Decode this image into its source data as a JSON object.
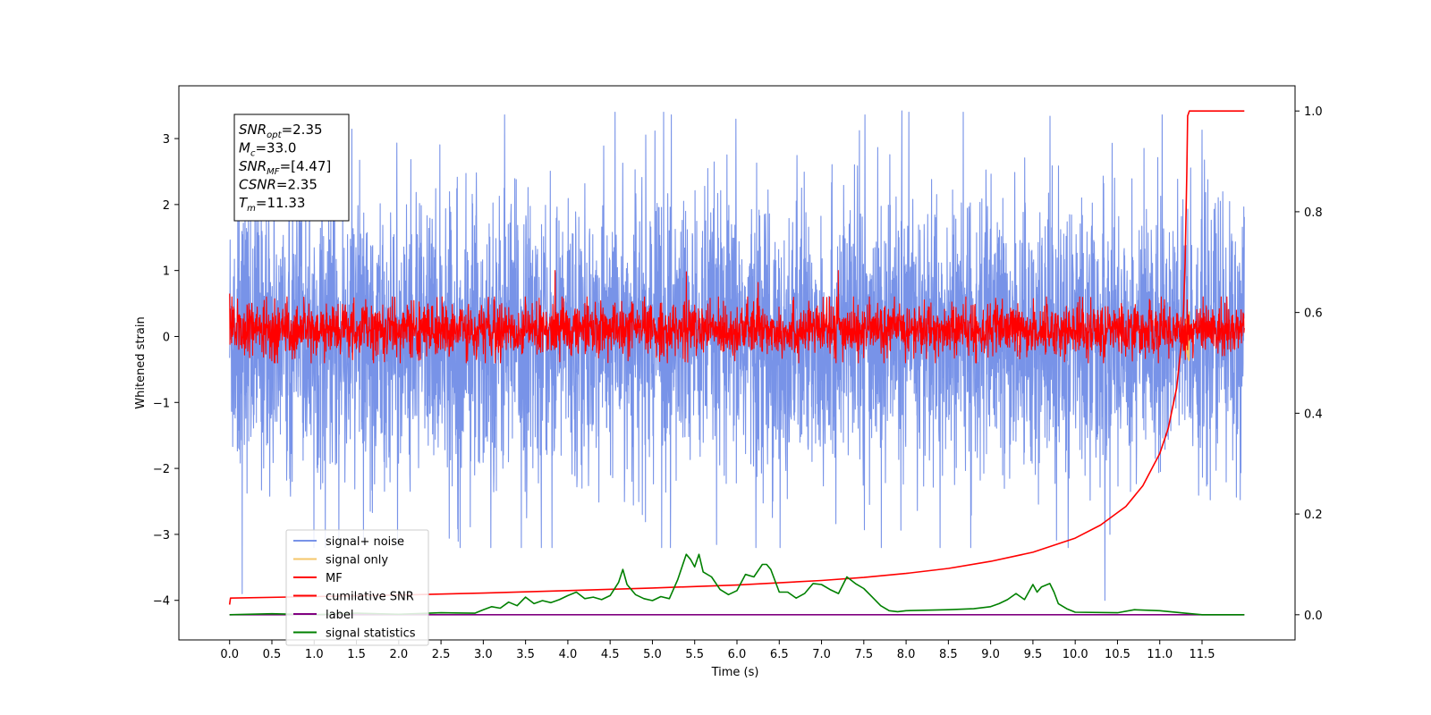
{
  "chart_data": {
    "type": "line",
    "title": "",
    "xlabel": "Time (s)",
    "ylabel": "Whitened strain",
    "y2label": "",
    "xlim": [
      -0.6,
      12.6
    ],
    "ylim": [
      -4.6,
      3.8
    ],
    "y2lim": [
      -0.05,
      1.05
    ],
    "x_ticks": [
      0.0,
      0.5,
      1.0,
      1.5,
      2.0,
      2.5,
      3.0,
      3.5,
      4.0,
      4.5,
      5.0,
      5.5,
      6.0,
      6.5,
      7.0,
      7.5,
      8.0,
      8.5,
      9.0,
      9.5,
      10.0,
      10.5,
      11.0,
      11.5
    ],
    "x_tick_labels": [
      "0.0",
      "0.5",
      "1.0",
      "1.5",
      "2.0",
      "2.5",
      "3.0",
      "3.5",
      "4.0",
      "4.5",
      "5.0",
      "5.5",
      "6.0",
      "6.5",
      "7.0",
      "7.5",
      "8.0",
      "8.5",
      "9.0",
      "9.5",
      "10.0",
      "10.5",
      "11.0",
      "11.5"
    ],
    "y_ticks": [
      -4,
      -3,
      -2,
      -1,
      0,
      1,
      2,
      3
    ],
    "y_tick_labels": [
      "−4",
      "−3",
      "−2",
      "−1",
      "0",
      "1",
      "2",
      "3"
    ],
    "y2_ticks": [
      0.0,
      0.2,
      0.4,
      0.6,
      0.8,
      1.0
    ],
    "y2_tick_labels": [
      "0.0",
      "0.2",
      "0.4",
      "0.6",
      "0.8",
      "1.0"
    ],
    "grid": false,
    "legend_placement": "lower-left",
    "annotation_lines": [
      {
        "pre": "SNR",
        "sub": "opt",
        "post": "=2.35"
      },
      {
        "pre": "M",
        "sub": "c",
        "post": "=33.0"
      },
      {
        "pre": "SNR",
        "sub": "MF",
        "post": "=[4.47]"
      },
      {
        "pre": "CSNR",
        "sub": "",
        "post": "=2.35"
      },
      {
        "pre": "T",
        "sub": "m",
        "post": "=11.33"
      }
    ],
    "series": [
      {
        "name": "signal+ noise",
        "color": "#7893e8",
        "axis": "left",
        "style": "noise",
        "x_range": [
          0.0,
          12.0
        ],
        "amplitude_approx": [
          -3.2,
          3.4
        ],
        "spikes": [
          {
            "x": 0.15,
            "y": -3.9
          },
          {
            "x": 7.95,
            "y": 3.42
          },
          {
            "x": 10.35,
            "y": -4.0
          },
          {
            "x": 3.45,
            "y": -3.2
          }
        ]
      },
      {
        "name": "signal only",
        "color": "#f5c66a",
        "axis": "left",
        "style": "chirp",
        "x_range": [
          11.25,
          11.35
        ],
        "amplitude_approx": [
          -0.4,
          0.4
        ]
      },
      {
        "name": "MF",
        "color": "#ff0000",
        "axis": "left",
        "style": "noise",
        "x_range": [
          0.0,
          12.0
        ],
        "amplitude_approx": [
          -0.4,
          0.6
        ],
        "spikes": [
          {
            "x": 0.0,
            "y": 0.65
          },
          {
            "x": 3.85,
            "y": 1.0
          },
          {
            "x": 5.4,
            "y": 0.98
          },
          {
            "x": 7.2,
            "y": 1.0
          },
          {
            "x": 6.25,
            "y": 0.82
          }
        ]
      },
      {
        "name": "cumilative SNR",
        "color": "#ff0000",
        "axis": "right",
        "x": [
          0.0,
          0.01,
          1.0,
          2.0,
          3.0,
          4.0,
          5.0,
          6.0,
          7.0,
          7.5,
          8.0,
          8.5,
          9.0,
          9.5,
          10.0,
          10.3,
          10.6,
          10.8,
          11.0,
          11.1,
          11.2,
          11.25,
          11.28,
          11.3,
          11.32,
          11.33,
          11.35,
          11.6,
          12.0
        ],
        "y": [
          0.02,
          0.033,
          0.036,
          0.039,
          0.043,
          0.048,
          0.053,
          0.059,
          0.068,
          0.074,
          0.082,
          0.092,
          0.106,
          0.124,
          0.152,
          0.178,
          0.215,
          0.256,
          0.32,
          0.37,
          0.45,
          0.53,
          0.6,
          0.7,
          0.88,
          0.99,
          1.0,
          1.0,
          1.0
        ]
      },
      {
        "name": "label",
        "color": "#800080",
        "axis": "right",
        "x": [
          0.0,
          12.0
        ],
        "y": [
          0.0,
          0.0
        ]
      },
      {
        "name": "signal statistics",
        "color": "#008000",
        "axis": "right",
        "x": [
          0.0,
          0.5,
          1.0,
          1.5,
          2.0,
          2.5,
          2.9,
          3.0,
          3.1,
          3.2,
          3.3,
          3.4,
          3.5,
          3.6,
          3.7,
          3.8,
          3.9,
          4.0,
          4.1,
          4.2,
          4.3,
          4.4,
          4.5,
          4.6,
          4.65,
          4.7,
          4.8,
          4.9,
          5.0,
          5.1,
          5.2,
          5.3,
          5.4,
          5.45,
          5.5,
          5.55,
          5.6,
          5.7,
          5.8,
          5.9,
          6.0,
          6.1,
          6.2,
          6.3,
          6.35,
          6.4,
          6.5,
          6.6,
          6.7,
          6.8,
          6.9,
          7.0,
          7.1,
          7.2,
          7.3,
          7.4,
          7.5,
          7.6,
          7.7,
          7.8,
          7.9,
          8.0,
          8.5,
          8.8,
          9.0,
          9.1,
          9.2,
          9.3,
          9.4,
          9.5,
          9.55,
          9.6,
          9.7,
          9.75,
          9.8,
          9.9,
          10.0,
          10.5,
          10.7,
          11.0,
          11.3,
          11.5,
          12.0
        ],
        "y": [
          0.0,
          0.002,
          0.0,
          0.003,
          0.001,
          0.004,
          0.003,
          0.01,
          0.016,
          0.013,
          0.025,
          0.018,
          0.035,
          0.022,
          0.028,
          0.024,
          0.03,
          0.038,
          0.045,
          0.032,
          0.035,
          0.03,
          0.038,
          0.064,
          0.09,
          0.06,
          0.04,
          0.032,
          0.028,
          0.036,
          0.032,
          0.07,
          0.12,
          0.11,
          0.095,
          0.12,
          0.085,
          0.075,
          0.05,
          0.04,
          0.048,
          0.08,
          0.075,
          0.1,
          0.1,
          0.09,
          0.045,
          0.045,
          0.033,
          0.042,
          0.062,
          0.06,
          0.05,
          0.042,
          0.075,
          0.062,
          0.052,
          0.035,
          0.018,
          0.008,
          0.006,
          0.008,
          0.01,
          0.012,
          0.016,
          0.022,
          0.03,
          0.042,
          0.03,
          0.06,
          0.045,
          0.055,
          0.062,
          0.045,
          0.022,
          0.012,
          0.005,
          0.004,
          0.01,
          0.008,
          0.003,
          0.0,
          0.0
        ]
      }
    ]
  }
}
